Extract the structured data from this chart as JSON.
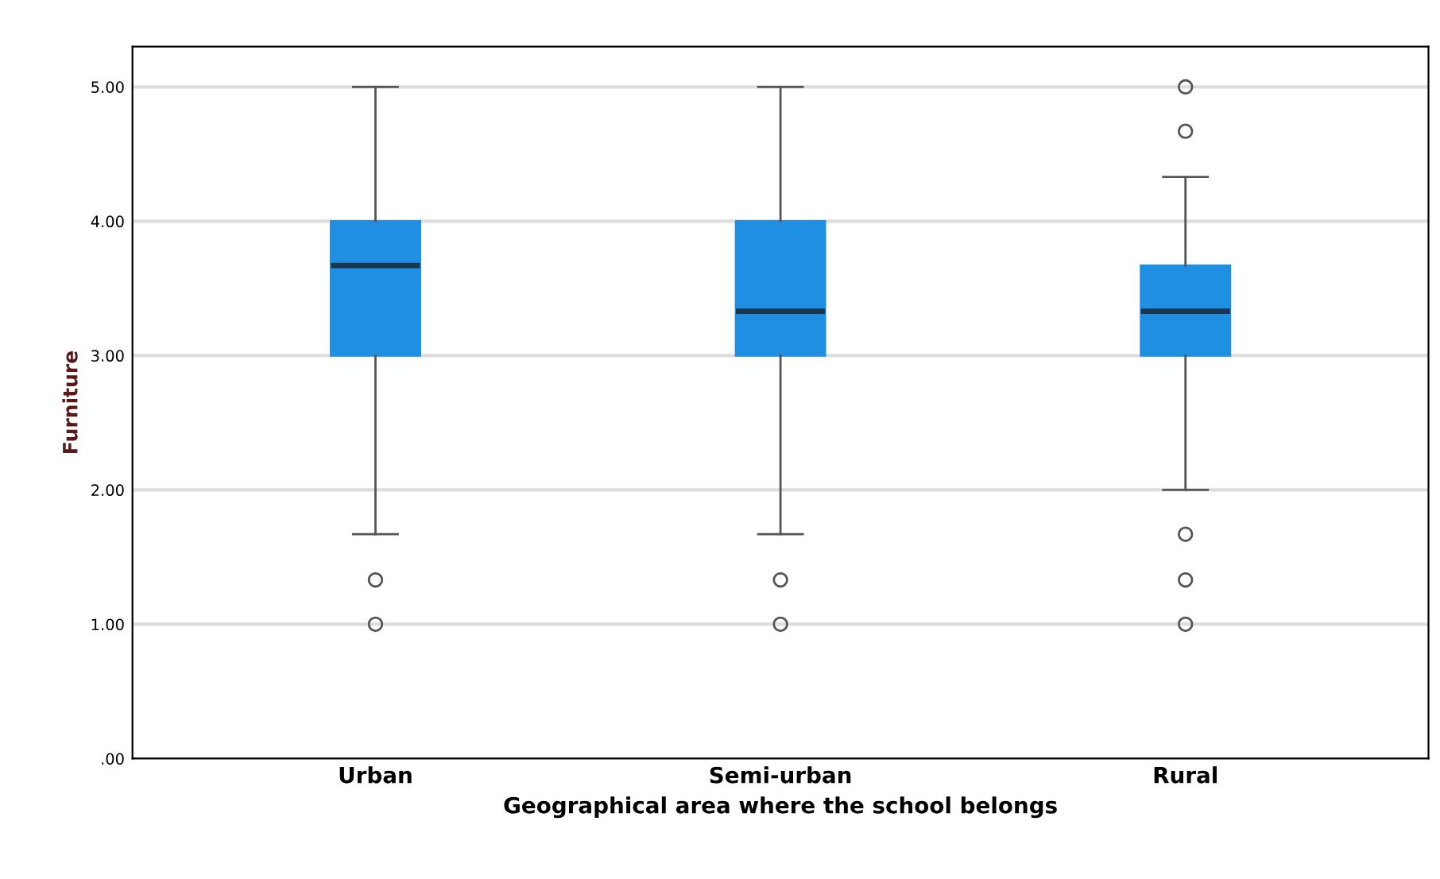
{
  "chart_data": {
    "type": "box",
    "categories": [
      "Urban",
      "Semi-urban",
      "Rural"
    ],
    "xlabel": "Geographical area where the school belongs",
    "ylabel": "Furniture",
    "color": "#1f8fe3",
    "boxes": [
      {
        "low": 1.67,
        "q1": 3.0,
        "median": 3.67,
        "q3": 4.0,
        "high": 5.0,
        "outliers": [
          1.33,
          1.0
        ]
      },
      {
        "low": 1.67,
        "q1": 3.0,
        "median": 3.33,
        "q3": 4.0,
        "high": 5.0,
        "outliers": [
          1.33,
          1.0
        ]
      },
      {
        "low": 2.0,
        "q1": 3.0,
        "median": 3.33,
        "q3": 3.67,
        "high": 4.33,
        "outliers": [
          5.0,
          4.67,
          1.67,
          1.33,
          1.0
        ]
      }
    ],
    "ylim": [
      0,
      5.3
    ],
    "yticks": [
      {
        "value": 0,
        "label": ".00"
      },
      {
        "value": 1,
        "label": "1.00"
      },
      {
        "value": 2,
        "label": "2.00"
      },
      {
        "value": 3,
        "label": "3.00"
      },
      {
        "value": 4,
        "label": "4.00"
      },
      {
        "value": 5,
        "label": "5.00"
      }
    ],
    "grid": "y"
  }
}
